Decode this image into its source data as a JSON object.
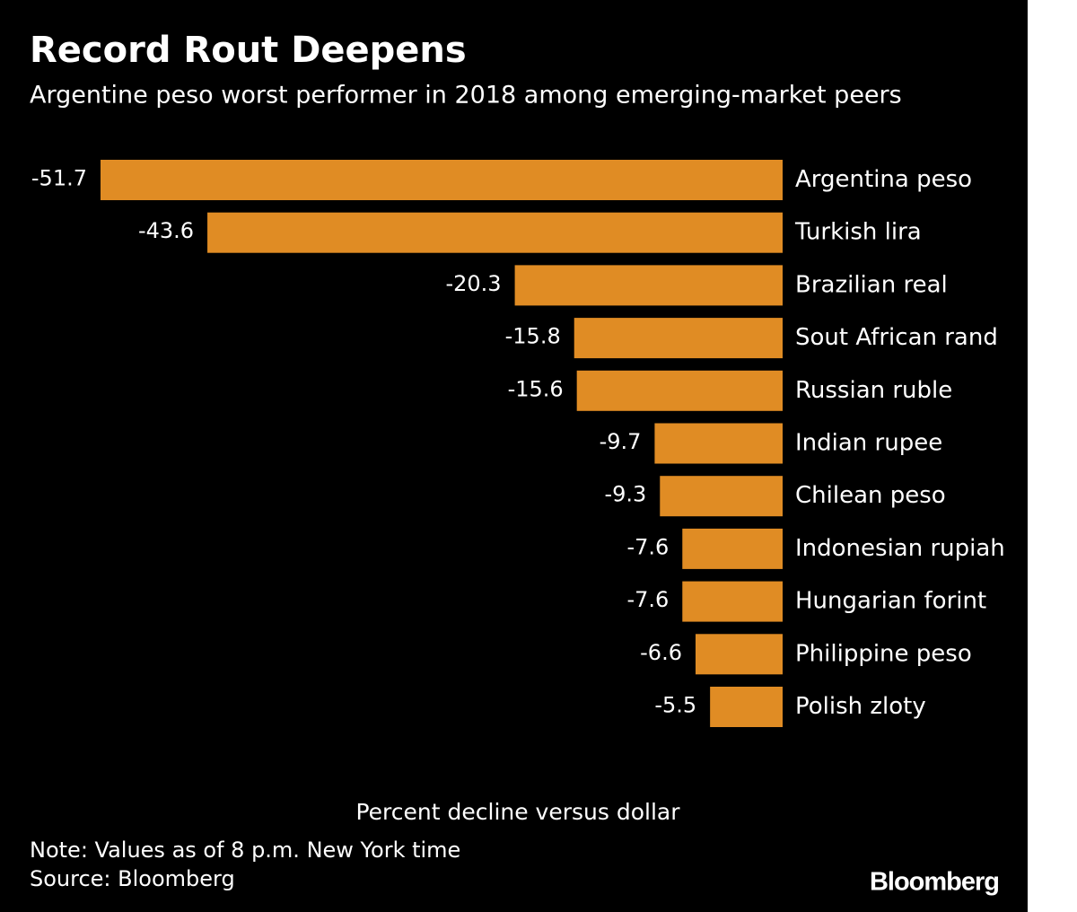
{
  "chart_data": {
    "type": "bar",
    "orientation": "horizontal",
    "title": "Record Rout Deepens",
    "subtitle": "Argentine peso worst performer in 2018 among emerging-market peers",
    "categories": [
      "Argentina peso",
      "Turkish lira",
      "Brazilian real",
      "Sout African rand",
      "Russian ruble",
      "Indian rupee",
      "Chilean peso",
      "Indonesian rupiah",
      "Hungarian forint",
      "Philippine peso",
      "Polish zloty"
    ],
    "values": [
      -51.7,
      -43.6,
      -20.3,
      -15.8,
      -15.6,
      -9.7,
      -9.3,
      -7.6,
      -7.6,
      -6.6,
      -5.5
    ],
    "color": "#e08c24",
    "x_label": "Percent decline versus dollar",
    "note": "Note: Values as of 8 p.m. New York time",
    "source": "Source: Bloomberg",
    "logo": "Bloomberg"
  }
}
